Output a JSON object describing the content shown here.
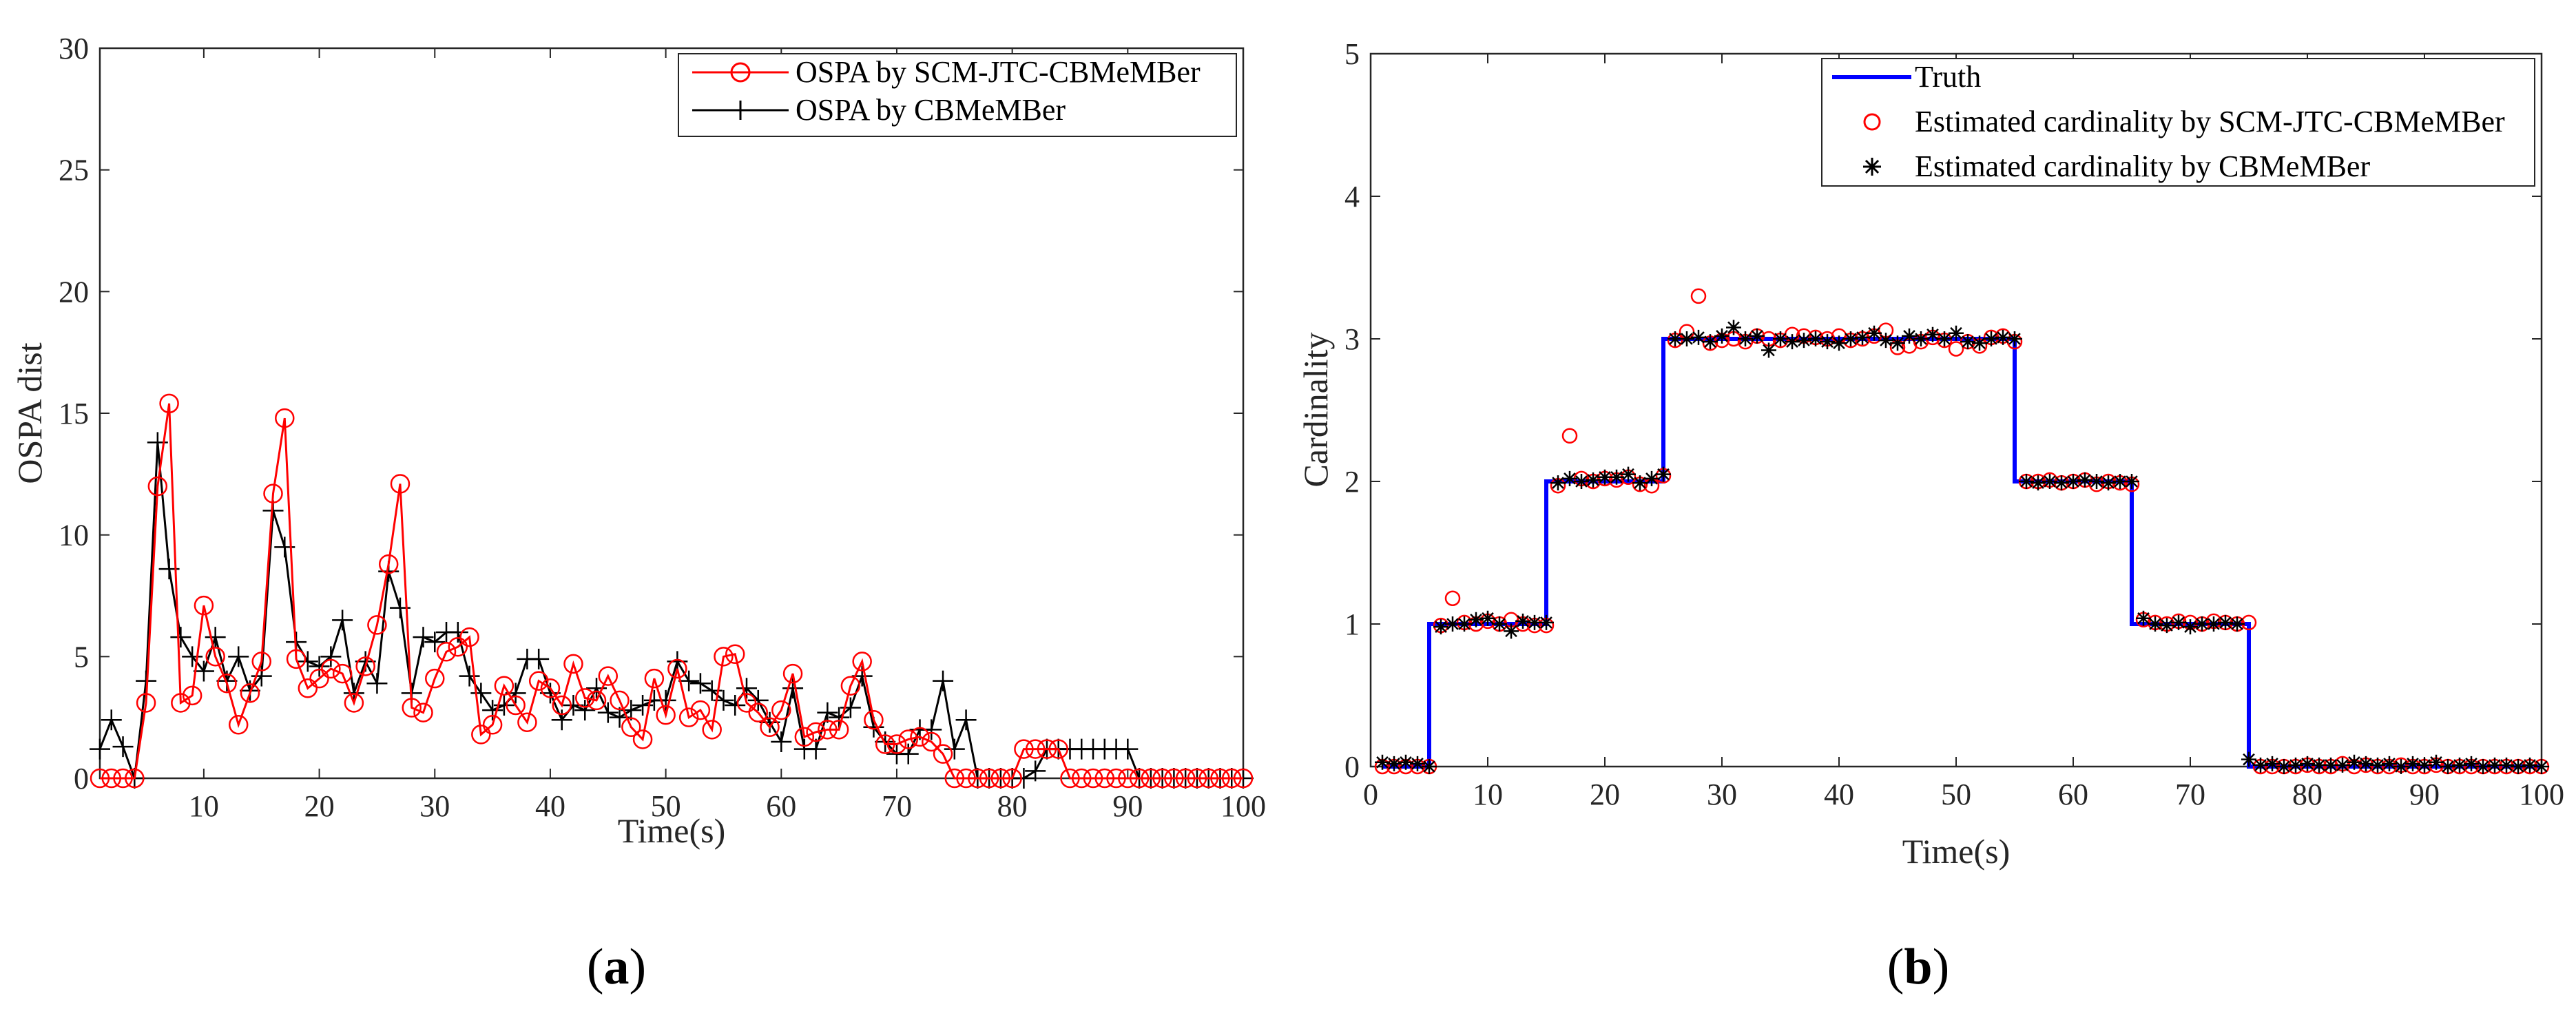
{
  "chart_data": [
    {
      "type": "line",
      "panel_label": "a",
      "xlabel": "Time(s)",
      "ylabel": "OSPA dist",
      "xlim": [
        1,
        100
      ],
      "ylim": [
        0,
        30
      ],
      "xticks": [
        10,
        20,
        30,
        40,
        50,
        60,
        70,
        80,
        90,
        100
      ],
      "yticks": [
        0,
        5,
        10,
        15,
        20,
        25,
        30
      ],
      "grid": false,
      "legend_position": "top-right",
      "x": [
        1,
        2,
        3,
        4,
        5,
        6,
        7,
        8,
        9,
        10,
        11,
        12,
        13,
        14,
        15,
        16,
        17,
        18,
        19,
        20,
        21,
        22,
        23,
        24,
        25,
        26,
        27,
        28,
        29,
        30,
        31,
        32,
        33,
        34,
        35,
        36,
        37,
        38,
        39,
        40,
        41,
        42,
        43,
        44,
        45,
        46,
        47,
        48,
        49,
        50,
        51,
        52,
        53,
        54,
        55,
        56,
        57,
        58,
        59,
        60,
        61,
        62,
        63,
        64,
        65,
        66,
        67,
        68,
        69,
        70,
        71,
        72,
        73,
        74,
        75,
        76,
        77,
        78,
        79,
        80,
        81,
        82,
        83,
        84,
        85,
        86,
        87,
        88,
        89,
        90,
        91,
        92,
        93,
        94,
        95,
        96,
        97,
        98,
        99,
        100
      ],
      "series": [
        {
          "name": "OSPA by SCM-JTC-CBMeMBer",
          "color": "#ff0000",
          "marker": "circle",
          "values": [
            0,
            0,
            0,
            0,
            3.1,
            12,
            15.4,
            3.1,
            3.4,
            7.1,
            5,
            3.9,
            2.2,
            3.5,
            4.8,
            11.7,
            14.8,
            4.9,
            3.7,
            4.1,
            4.5,
            4.3,
            3.1,
            4.6,
            6.3,
            8.8,
            12.1,
            2.9,
            2.7,
            4.1,
            5.2,
            5.4,
            5.8,
            1.8,
            2.2,
            3.8,
            3,
            2.3,
            4,
            3.7,
            3,
            4.7,
            3.3,
            3.2,
            4.2,
            3.2,
            2.1,
            1.6,
            4.1,
            2.6,
            4.5,
            2.5,
            2.8,
            2,
            5,
            5.1,
            3.1,
            2.7,
            2.1,
            2.8,
            4.3,
            1.7,
            1.9,
            2,
            2,
            3.8,
            4.8,
            2.4,
            1.4,
            1.4,
            1.6,
            1.7,
            1.5,
            1,
            0,
            0,
            0,
            0,
            0,
            0,
            1.2,
            1.2,
            1.2,
            1.2,
            0,
            0,
            0,
            0,
            0,
            0,
            0,
            0,
            0,
            0,
            0,
            0,
            0,
            0,
            0,
            0
          ]
        },
        {
          "name": "OSPA by CBMeMBer",
          "color": "#000000",
          "marker": "plus",
          "values": [
            1.2,
            2.4,
            1.3,
            0,
            4,
            13.8,
            8.6,
            5.8,
            5,
            4.4,
            5.8,
            4,
            5,
            3.6,
            4.2,
            11,
            9.5,
            5.6,
            4.8,
            4.6,
            5,
            6.5,
            3.5,
            4.8,
            3.9,
            8.5,
            7,
            3.5,
            5.8,
            5.6,
            6,
            6,
            4.2,
            3.5,
            2.8,
            3,
            3.5,
            4.9,
            4.9,
            3.5,
            2.4,
            3,
            2.8,
            3.7,
            2.7,
            2.5,
            2.8,
            3,
            3.2,
            3.2,
            4.8,
            4,
            3.9,
            3.6,
            3.2,
            3,
            3.7,
            3.2,
            2.3,
            1.5,
            3.7,
            1.2,
            1.2,
            2.7,
            2.5,
            2.9,
            4.2,
            2.1,
            1.5,
            1,
            1,
            2,
            2,
            4,
            1.2,
            2.4,
            0,
            0,
            0,
            0,
            0,
            0.3,
            1.2,
            1.2,
            1.2,
            1.2,
            1.2,
            1.2,
            1.2,
            1.2,
            0,
            0,
            0,
            0,
            0,
            0,
            0,
            0,
            0,
            0
          ]
        }
      ]
    },
    {
      "type": "line",
      "panel_label": "b",
      "xlabel": "Time(s)",
      "ylabel": "Cardinality",
      "xlim": [
        0,
        100
      ],
      "ylim": [
        0,
        5
      ],
      "xticks": [
        0,
        10,
        20,
        30,
        40,
        50,
        60,
        70,
        80,
        90,
        100
      ],
      "yticks": [
        0,
        1,
        2,
        3,
        4,
        5
      ],
      "grid": false,
      "legend_position": "top-right",
      "x": [
        1,
        2,
        3,
        4,
        5,
        6,
        7,
        8,
        9,
        10,
        11,
        12,
        13,
        14,
        15,
        16,
        17,
        18,
        19,
        20,
        21,
        22,
        23,
        24,
        25,
        26,
        27,
        28,
        29,
        30,
        31,
        32,
        33,
        34,
        35,
        36,
        37,
        38,
        39,
        40,
        41,
        42,
        43,
        44,
        45,
        46,
        47,
        48,
        49,
        50,
        51,
        52,
        53,
        54,
        55,
        56,
        57,
        58,
        59,
        60,
        61,
        62,
        63,
        64,
        65,
        66,
        67,
        68,
        69,
        70,
        71,
        72,
        73,
        74,
        75,
        76,
        77,
        78,
        79,
        80,
        81,
        82,
        83,
        84,
        85,
        86,
        87,
        88,
        89,
        90,
        91,
        92,
        93,
        94,
        95,
        96,
        97,
        98,
        99,
        100
      ],
      "series": [
        {
          "name": "Truth",
          "color": "#0000ff",
          "style": "step",
          "steps": [
            [
              1,
              0
            ],
            [
              5,
              0
            ],
            [
              5,
              1
            ],
            [
              15,
              1
            ],
            [
              15,
              2
            ],
            [
              25,
              2
            ],
            [
              25,
              3
            ],
            [
              55,
              3
            ],
            [
              55,
              2
            ],
            [
              65,
              2
            ],
            [
              65,
              1
            ],
            [
              75,
              1
            ],
            [
              75,
              0
            ],
            [
              100,
              0
            ]
          ]
        },
        {
          "name": "Estimated cardinality by SCM-JTC-CBMeMBer",
          "color": "#ff0000",
          "marker": "circle",
          "values": [
            0,
            0,
            0,
            0,
            0,
            0.99,
            1.18,
            1.01,
            1,
            1.02,
            1,
            1.03,
            1,
            0.99,
            0.99,
            1.97,
            2.32,
            2.02,
            2,
            2.02,
            2.01,
            2.03,
            1.98,
            1.97,
            2.04,
            2.99,
            3.05,
            3.3,
            2.97,
            2.99,
            3,
            2.98,
            3.02,
            3,
            2.99,
            3.03,
            3.02,
            3.01,
            3,
            3.02,
            2.99,
            3,
            3.02,
            3.06,
            2.94,
            2.95,
            2.98,
            3.01,
            2.99,
            2.93,
            2.98,
            2.95,
            3.01,
            3.02,
            2.98,
            2,
            2,
            2.01,
            1.99,
            2,
            2.01,
            1.98,
            2,
            1.99,
            1.98,
            1.03,
            1.01,
            1,
            1.02,
            1.01,
            1,
            1.02,
            1.01,
            1,
            1.01,
            0,
            0,
            0,
            0,
            0.01,
            0,
            0,
            0.02,
            0,
            0.01,
            0,
            0,
            0.01,
            0,
            0,
            0.01,
            0,
            0,
            0,
            0,
            0,
            0,
            0,
            0,
            0
          ]
        },
        {
          "name": "Estimated cardinality by CBMeMBer",
          "color": "#000000",
          "marker": "asterisk",
          "values": [
            0.03,
            0.02,
            0.03,
            0.02,
            0,
            0.98,
            1,
            1,
            1.03,
            1.04,
            1,
            0.95,
            1.02,
            1.01,
            1.01,
            1.99,
            2.02,
            2,
            2.01,
            2.03,
            2.03,
            2.05,
            1.99,
            2.02,
            2.05,
            3,
            3,
            3.01,
            2.98,
            3.02,
            3.08,
            3,
            3.02,
            2.92,
            3,
            2.98,
            2.99,
            3,
            2.98,
            2.97,
            3,
            3.01,
            3.04,
            2.99,
            2.97,
            3.02,
            3,
            3.03,
            3,
            3.04,
            2.98,
            2.97,
            3,
            3.01,
            3,
            2,
            1.99,
            2,
            1.99,
            2,
            2.01,
            2,
            1.99,
            2,
            2,
            1.04,
            1,
            0.99,
            1.01,
            0.98,
            1,
            1,
            1.01,
            1,
            0.05,
            0.01,
            0.02,
            0,
            0.01,
            0.02,
            0.01,
            0.01,
            0.01,
            0.03,
            0.02,
            0.01,
            0.02,
            0,
            0.02,
            0.01,
            0.03,
            0,
            0.01,
            0.02,
            0,
            0.01,
            0.01,
            0,
            0.01,
            0
          ]
        }
      ]
    }
  ]
}
